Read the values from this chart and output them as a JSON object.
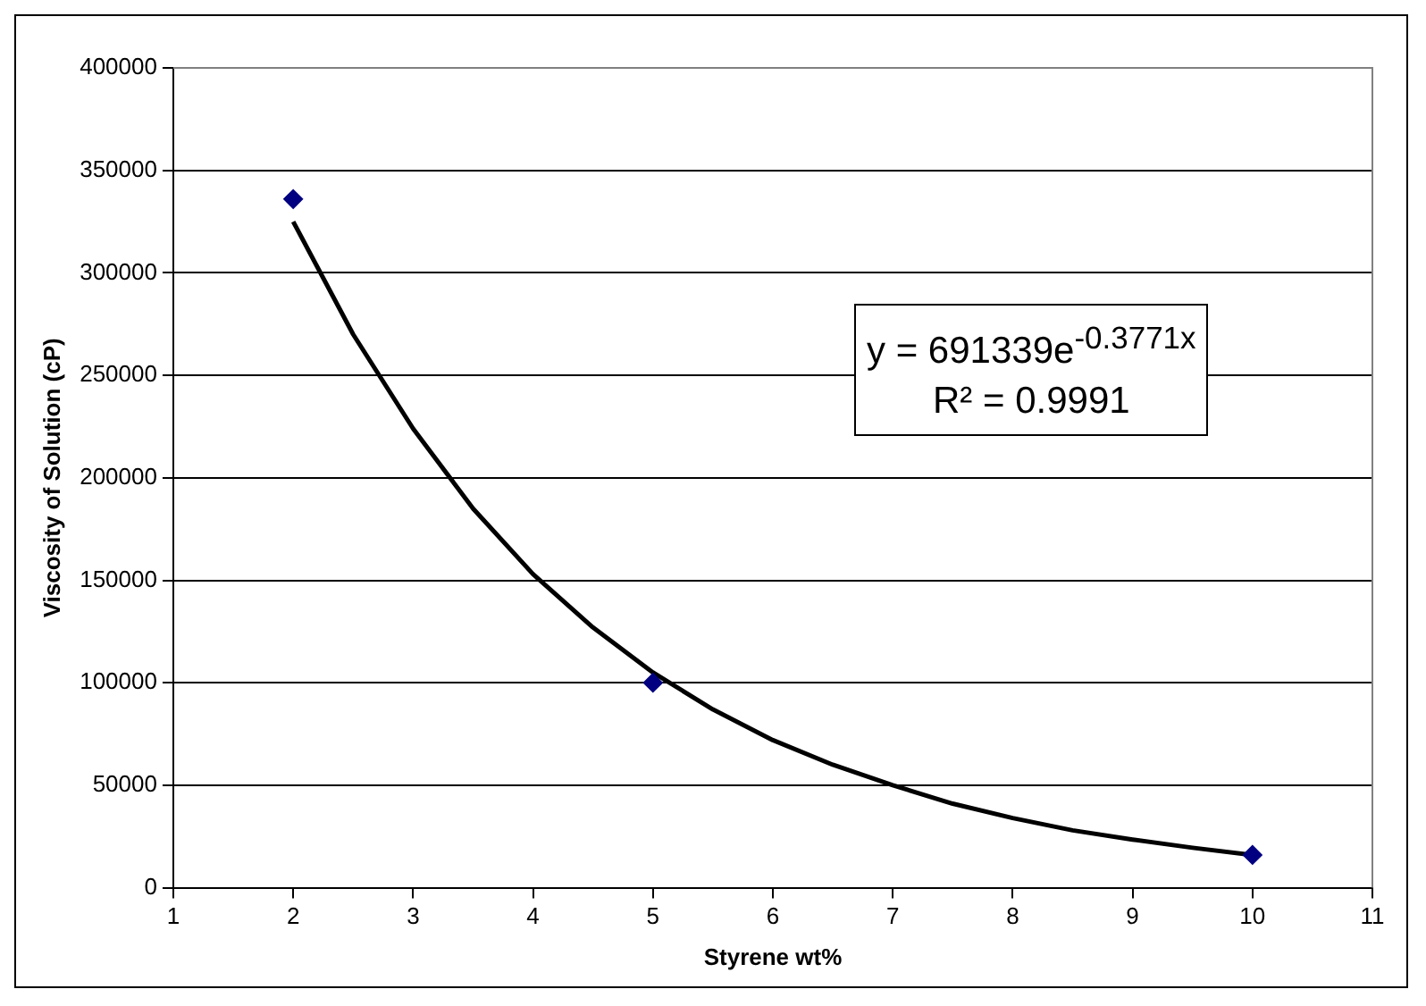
{
  "chart_data": {
    "type": "scatter",
    "xlabel": "Styrene wt%",
    "ylabel": "Viscosity of Solution (cP)",
    "xlim": [
      1,
      11
    ],
    "xticks": [
      1,
      2,
      3,
      4,
      5,
      6,
      7,
      8,
      9,
      10,
      11
    ],
    "ylim": [
      0,
      400000
    ],
    "yticks": [
      0,
      50000,
      100000,
      150000,
      200000,
      250000,
      300000,
      350000,
      400000
    ],
    "grid": "y",
    "legend": false,
    "annotations": [
      "y = 691339e$^{-0.3771x}$",
      "R² = 0.9991"
    ],
    "series": [
      {
        "type": "scatter",
        "x": [
          2,
          5,
          10
        ],
        "values": [
          336000,
          100000,
          16000
        ],
        "color": "#000080",
        "marker": "diamond"
      },
      {
        "type": "line",
        "x": [
          2,
          2.5,
          3,
          3.5,
          4,
          4.5,
          5,
          5.5,
          6,
          6.5,
          7,
          7.5,
          8,
          8.5,
          9,
          9.5,
          10
        ],
        "values": [
          325000,
          270000,
          224000,
          185000,
          153000,
          127000,
          105000,
          87000,
          72000,
          60000,
          50000,
          41000,
          34000,
          28000,
          23500,
          19500,
          16000
        ],
        "color": "#000000",
        "marker": "none",
        "line_style": "solid"
      }
    ]
  }
}
